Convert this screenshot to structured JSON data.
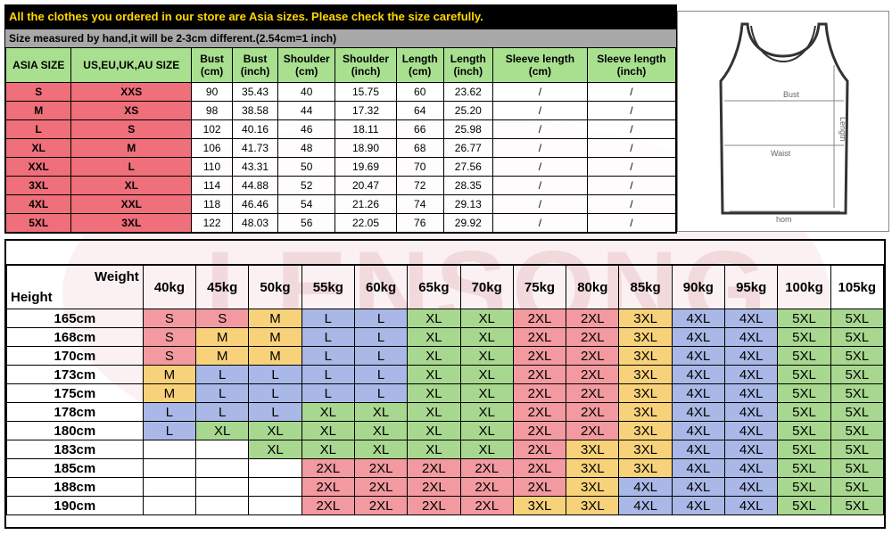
{
  "watermark": "LENSONG",
  "top_table": {
    "banner": "All the clothes you ordered in our store are Asia sizes. Please check the size carefully.",
    "note": "Size measured by hand,it will be 2-3cm different.(2.54cm=1 inch)",
    "headers": [
      "ASIA SIZE",
      "US,EU,UK,AU SIZE",
      "Bust\n(cm)",
      "Bust\n(inch)",
      "Shoulder\n(cm)",
      "Shoulder\n(inch)",
      "Length\n(cm)",
      "Length\n(inch)",
      "Sleeve length\n(cm)",
      "Sleeve length\n(inch)"
    ],
    "rows": [
      [
        "S",
        "XXS",
        "90",
        "35.43",
        "40",
        "15.75",
        "60",
        "23.62",
        "/",
        "/"
      ],
      [
        "M",
        "XS",
        "98",
        "38.58",
        "44",
        "17.32",
        "64",
        "25.20",
        "/",
        "/"
      ],
      [
        "L",
        "S",
        "102",
        "40.16",
        "46",
        "18.11",
        "66",
        "25.98",
        "/",
        "/"
      ],
      [
        "XL",
        "M",
        "106",
        "41.73",
        "48",
        "18.90",
        "68",
        "26.77",
        "/",
        "/"
      ],
      [
        "XXL",
        "L",
        "110",
        "43.31",
        "50",
        "19.69",
        "70",
        "27.56",
        "/",
        "/"
      ],
      [
        "3XL",
        "XL",
        "114",
        "44.88",
        "52",
        "20.47",
        "72",
        "28.35",
        "/",
        "/"
      ],
      [
        "4XL",
        "XXL",
        "118",
        "46.46",
        "54",
        "21.26",
        "74",
        "29.13",
        "/",
        "/"
      ],
      [
        "5XL",
        "3XL",
        "122",
        "48.03",
        "56",
        "22.05",
        "76",
        "29.92",
        "/",
        "/"
      ]
    ]
  },
  "diagram": {
    "labels": {
      "bust": "Bust",
      "length": "Length",
      "waist": "Waist",
      "hem": "hom"
    },
    "colors": {
      "outline": "#333333",
      "measure": "#888888"
    }
  },
  "bottom_table": {
    "corner_weight": "Weight",
    "corner_height": "Height",
    "weights": [
      "40kg",
      "45kg",
      "50kg",
      "55kg",
      "60kg",
      "65kg",
      "70kg",
      "75kg",
      "80kg",
      "85kg",
      "90kg",
      "95kg",
      "100kg",
      "105kg"
    ],
    "rows": [
      {
        "height": "165cm",
        "sizes": [
          "S",
          "S",
          "M",
          "L",
          "L",
          "XL",
          "XL",
          "2XL",
          "2XL",
          "3XL",
          "4XL",
          "4XL",
          "5XL",
          "5XL"
        ]
      },
      {
        "height": "168cm",
        "sizes": [
          "S",
          "M",
          "M",
          "L",
          "L",
          "XL",
          "XL",
          "2XL",
          "2XL",
          "3XL",
          "4XL",
          "4XL",
          "5XL",
          "5XL"
        ]
      },
      {
        "height": "170cm",
        "sizes": [
          "S",
          "M",
          "M",
          "L",
          "L",
          "XL",
          "XL",
          "2XL",
          "2XL",
          "3XL",
          "4XL",
          "4XL",
          "5XL",
          "5XL"
        ]
      },
      {
        "height": "173cm",
        "sizes": [
          "M",
          "L",
          "L",
          "L",
          "L",
          "XL",
          "XL",
          "2XL",
          "2XL",
          "3XL",
          "4XL",
          "4XL",
          "5XL",
          "5XL"
        ]
      },
      {
        "height": "175cm",
        "sizes": [
          "M",
          "L",
          "L",
          "L",
          "L",
          "XL",
          "XL",
          "2XL",
          "2XL",
          "3XL",
          "4XL",
          "4XL",
          "5XL",
          "5XL"
        ]
      },
      {
        "height": "178cm",
        "sizes": [
          "L",
          "L",
          "L",
          "XL",
          "XL",
          "XL",
          "XL",
          "2XL",
          "2XL",
          "3XL",
          "4XL",
          "4XL",
          "5XL",
          "5XL"
        ]
      },
      {
        "height": "180cm",
        "sizes": [
          "L",
          "XL",
          "XL",
          "XL",
          "XL",
          "XL",
          "XL",
          "2XL",
          "2XL",
          "3XL",
          "4XL",
          "4XL",
          "5XL",
          "5XL"
        ]
      },
      {
        "height": "183cm",
        "sizes": [
          "",
          "",
          "XL",
          "XL",
          "XL",
          "XL",
          "XL",
          "2XL",
          "3XL",
          "3XL",
          "4XL",
          "4XL",
          "5XL",
          "5XL"
        ]
      },
      {
        "height": "185cm",
        "sizes": [
          "",
          "",
          "",
          "2XL",
          "2XL",
          "2XL",
          "2XL",
          "2XL",
          "3XL",
          "3XL",
          "4XL",
          "4XL",
          "5XL",
          "5XL"
        ]
      },
      {
        "height": "188cm",
        "sizes": [
          "",
          "",
          "",
          "2XL",
          "2XL",
          "2XL",
          "2XL",
          "2XL",
          "3XL",
          "4XL",
          "4XL",
          "4XL",
          "5XL",
          "5XL"
        ]
      },
      {
        "height": "190cm",
        "sizes": [
          "",
          "",
          "",
          "2XL",
          "2XL",
          "2XL",
          "2XL",
          "3XL",
          "3XL",
          "4XL",
          "4XL",
          "4XL",
          "5XL",
          "5XL"
        ]
      }
    ],
    "size_colors": {
      "S": "#f29aa0",
      "M": "#f8d27a",
      "L": "#a9b8e6",
      "XL": "#a8d890",
      "2XL": "#f29aa0",
      "3XL": "#f8d27a",
      "4XL": "#a9b8e6",
      "5XL": "#a8d890"
    }
  }
}
